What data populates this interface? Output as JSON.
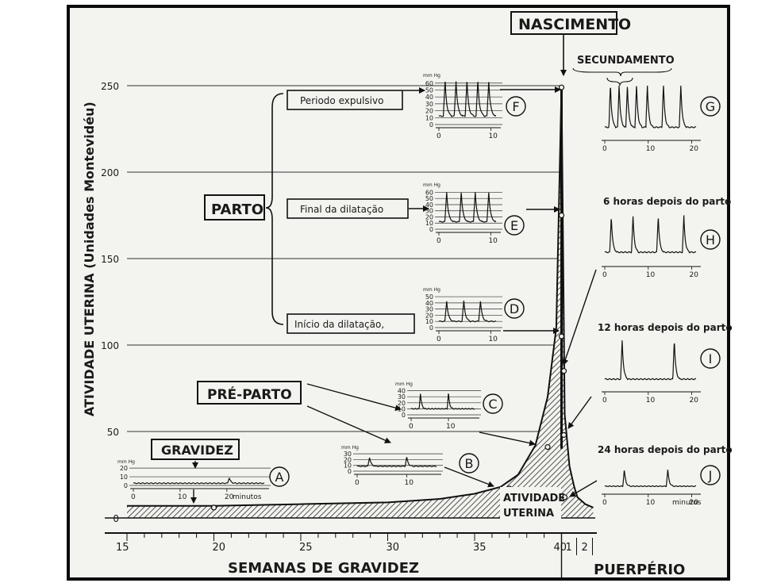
{
  "chart_data": {
    "type": "area",
    "title": "NASCIMENTO",
    "ylabel": "ATIVIDADE UTERINA (Unidades Montevidéu)",
    "xlabel": "SEMANAS DE GRAVIDEZ",
    "xlabel_postpartum": "PUERPÉRIO",
    "ylim": [
      0,
      250
    ],
    "yticks": [
      0,
      50,
      100,
      150,
      200,
      250
    ],
    "xticks_weeks": [
      "15",
      "20",
      "25",
      "30",
      "35",
      "40"
    ],
    "xticks_postpartum": [
      "1",
      "2"
    ],
    "area_label_1": "ATIVIDADE",
    "area_label_2": "UTERINA",
    "series": [
      {
        "name": "Atividade uterina",
        "x": [
          15,
          20,
          25,
          30,
          33,
          35,
          36.5,
          37.5,
          38.5,
          39.2,
          39.7,
          40,
          40.2,
          40.5,
          40.8,
          41,
          41.5,
          42
        ],
        "values": [
          7,
          7,
          8,
          9,
          11,
          14,
          18,
          25,
          42,
          70,
          110,
          250,
          60,
          30,
          18,
          12,
          8,
          6
        ]
      }
    ],
    "markers": [
      {
        "x": 20,
        "y": 6
      },
      {
        "x": 37,
        "y": 17
      },
      {
        "x": 39.2,
        "y": 41
      },
      {
        "x": 40,
        "y": 105
      },
      {
        "x": 40,
        "y": 175
      },
      {
        "x": 40,
        "y": 249
      },
      {
        "x": 40.15,
        "y": 85
      },
      {
        "x": 40.15,
        "y": 48
      },
      {
        "x": 40.2,
        "y": 12
      }
    ],
    "labels": {
      "gravidez": "GRAVIDEZ",
      "pre_parto": "PRÉ-PARTO",
      "parto": "PARTO",
      "periodo_expulsivo": "Periodo expulsivo",
      "final_dilatacao": "Final da dilatação",
      "inicio_dilatacao": "Início da dilatação,",
      "secundamento": "SECUNDAMENTO",
      "h6": "6 horas depois do parto",
      "h12": "12 horas depois do parto",
      "h24": "24 horas depois do parto"
    },
    "insets": [
      {
        "id": "A",
        "unit": "mm Hg",
        "yticks": [
          "20",
          "10",
          "0"
        ],
        "xticks": [
          "0",
          "10",
          "20"
        ],
        "xunit": "minutos",
        "peaks": [
          20.5
        ],
        "peak_height": 8,
        "max": 25,
        "xmax": 28,
        "baseline": 3
      },
      {
        "id": "B",
        "unit": "mm Hg",
        "yticks": [
          "30",
          "20",
          "10",
          "0"
        ],
        "xticks": [
          "0",
          "10"
        ],
        "peaks": [
          2.5,
          10
        ],
        "peak_height": 15,
        "max": 30,
        "xmax": 16,
        "baseline": 8
      },
      {
        "id": "C",
        "unit": "mm Hg",
        "yticks": [
          "40",
          "30",
          "20",
          "10",
          "0"
        ],
        "xticks": [
          "0",
          "10"
        ],
        "peaks": [
          2.5,
          10
        ],
        "peak_height": 26,
        "max": 42,
        "xmax": 17,
        "baseline": 10
      },
      {
        "id": "D",
        "unit": "mm Hg",
        "yticks": [
          "50",
          "40",
          "30",
          "20",
          "10",
          "0"
        ],
        "xticks": [
          "0",
          "10"
        ],
        "peaks": [
          1.5,
          4.8,
          8
        ],
        "peak_height": 33,
        "max": 52,
        "xmax": 11,
        "baseline": 10
      },
      {
        "id": "E",
        "unit": "mm Hg",
        "yticks": [
          "60",
          "50",
          "40",
          "30",
          "20",
          "10",
          "0"
        ],
        "xticks": [
          "0",
          "10"
        ],
        "peaks": [
          1.5,
          4.3,
          7,
          9.6
        ],
        "peak_height": 48,
        "max": 62,
        "xmax": 11,
        "baseline": 12
      },
      {
        "id": "F",
        "unit": "mm Hg",
        "yticks": [
          "60",
          "50",
          "40",
          "30",
          "20",
          "10",
          "0"
        ],
        "xticks": [
          "0",
          "10"
        ],
        "peaks": [
          1.2,
          3.3,
          5.4,
          7.5,
          9.6
        ],
        "peak_height": 50,
        "max": 62,
        "xmax": 11,
        "baseline": 12
      },
      {
        "id": "G",
        "xticks": [
          "0",
          "10",
          "20"
        ],
        "peaks": [
          1.3,
          3.3,
          5.2,
          7.3,
          9.8,
          13.5,
          17.5
        ],
        "peak_height": 52,
        "max": 62,
        "xmax": 21,
        "baseline": 12
      },
      {
        "id": "H",
        "xticks": [
          "0",
          "10",
          "20"
        ],
        "peaks": [
          1.5,
          6.5,
          12.3,
          18.2
        ],
        "peak_height": 46,
        "max": 62,
        "xmax": 21,
        "baseline": 14
      },
      {
        "id": "I",
        "xticks": [
          "0",
          "10",
          "20"
        ],
        "peaks": [
          4,
          16
        ],
        "peak_height": 50,
        "max": 62,
        "xmax": 21,
        "baseline": 12
      },
      {
        "id": "J",
        "xticks": [
          "0",
          "10",
          "20"
        ],
        "xunit": "minutos",
        "peaks": [
          4.5,
          14.5
        ],
        "peak_height": 28,
        "max": 40,
        "xmax": 21,
        "baseline": 8
      }
    ]
  }
}
